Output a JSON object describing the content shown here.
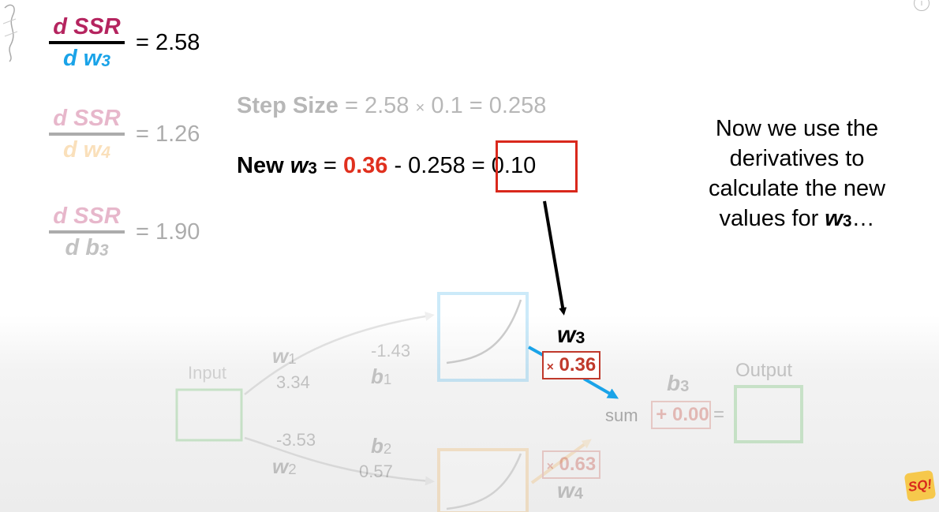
{
  "derivatives": [
    {
      "num": "d SSR",
      "den_d": "d",
      "den_var": "w",
      "den_sub": "3",
      "value": "= 2.58",
      "num_color": "#b5245f",
      "den_color": "#1aa3e8"
    },
    {
      "num": "d SSR",
      "den_d": "d",
      "den_var": "w",
      "den_sub": "4",
      "value": "= 1.26",
      "num_color": "#b5245f",
      "den_color": "#f0a030"
    },
    {
      "num": "d SSR",
      "den_d": "d",
      "den_var": "b",
      "den_sub": "3",
      "value": "= 1.90",
      "num_color": "#b5245f",
      "den_color": "#444444"
    }
  ],
  "step_size": {
    "label": "Step Size",
    "expr_a": " = 2.58 ",
    "times": "×",
    "expr_b": " 0.1 = 0.258"
  },
  "new_weight": {
    "prefix": "New ",
    "var": "w",
    "sub": "3",
    "eq": " = ",
    "old": "0.36",
    "minus": " - 0.258 ",
    "result": "= 0.10",
    "old_color": "#e0301e",
    "box_color": "#d9281c"
  },
  "narration": {
    "line1": "Now we use the",
    "line2": "derivatives to",
    "line3": "calculate the new",
    "line4_pre": "values for ",
    "line4_var": "w",
    "line4_sub": "3",
    "line4_post": "…"
  },
  "network": {
    "input_label": "Input",
    "output_label": "Output",
    "w1_var": "w",
    "w1_sub": "1",
    "w1_val": "3.34",
    "w2_var": "w",
    "w2_sub": "2",
    "w2_val": "-3.53",
    "b1_val": "-1.43",
    "b1_var": "b",
    "b1_sub": "1",
    "b2_val": "0.57",
    "b2_var": "b",
    "b2_sub": "2",
    "w3_var": "w",
    "w3_sub": "3",
    "w3_val": "0.36",
    "w4_var": "w",
    "w4_sub": "4",
    "w4_val": "0.63",
    "times": "×",
    "b3_var": "b",
    "b3_sub": "3",
    "sum_label": "sum",
    "b3_val": "+ 0.00",
    "equals": "=",
    "w3_color": "#1aa3e8",
    "w4_color": "#f0a030",
    "box_red": "#c0392b"
  },
  "logo_text": "SQ!",
  "info_icon": "info-icon"
}
